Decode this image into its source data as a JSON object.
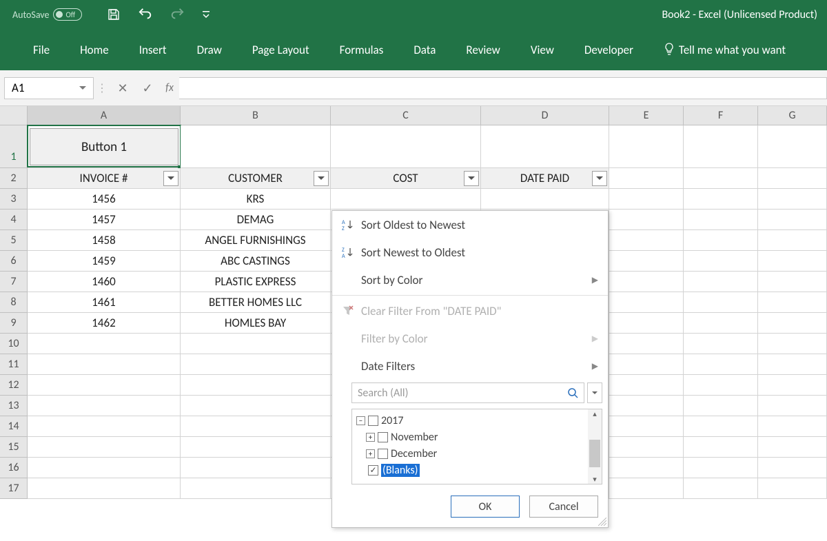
{
  "titlebar": {
    "autosave_label": "AutoSave",
    "autosave_state": "Off",
    "title": "Book2  -  Excel (Unlicensed Product)"
  },
  "ribbon": {
    "tabs": [
      "File",
      "Home",
      "Insert",
      "Draw",
      "Page Layout",
      "Formulas",
      "Data",
      "Review",
      "View",
      "Developer"
    ],
    "tellme": "Tell me what you want"
  },
  "formula_bar": {
    "namebox": "A1",
    "fx_label": "fx",
    "value": ""
  },
  "columns": {
    "headers": [
      "A",
      "B",
      "C",
      "D",
      "E",
      "F",
      "G"
    ],
    "widths": [
      222,
      218,
      218,
      186,
      108,
      108,
      100
    ]
  },
  "rows": {
    "count": 17,
    "heights": {
      "1": 62
    }
  },
  "sheet": {
    "button1_label": "Button 1",
    "header_row": [
      "INVOICE #",
      "CUSTOMER",
      "COST",
      "DATE PAID"
    ],
    "data": [
      [
        "1456",
        "KRS"
      ],
      [
        "1457",
        "DEMAG"
      ],
      [
        "1458",
        "ANGEL FURNISHINGS"
      ],
      [
        "1459",
        "ABC CASTINGS"
      ],
      [
        "1460",
        "PLASTIC EXPRESS"
      ],
      [
        "1461",
        "BETTER HOMES LLC"
      ],
      [
        "1462",
        "HOMLES BAY"
      ]
    ]
  },
  "filter_popup": {
    "sort_asc": "Sort Oldest to Newest",
    "sort_desc": "Sort Newest to Oldest",
    "sort_color": "Sort by Color",
    "clear_filter": "Clear Filter From \"DATE PAID\"",
    "filter_color": "Filter by Color",
    "date_filters": "Date Filters",
    "search_placeholder": "Search (All)",
    "tree": {
      "year": "2017",
      "months": [
        "November",
        "December"
      ],
      "blanks": "(Blanks)"
    },
    "ok": "OK",
    "cancel": "Cancel"
  },
  "colors": {
    "ribbon_bg": "#217346",
    "grid_border": "#d3d3d3",
    "header_bg": "#e6e6e6",
    "selection_border": "#217346"
  }
}
